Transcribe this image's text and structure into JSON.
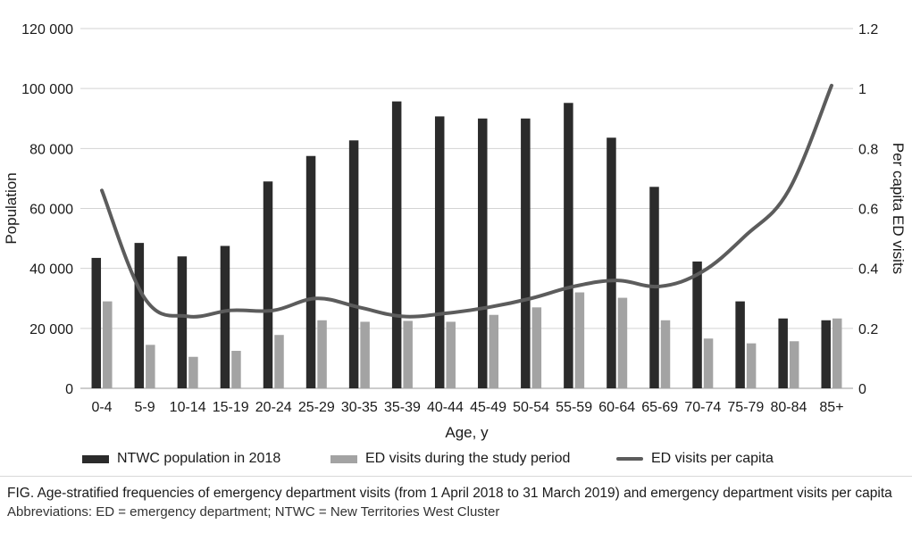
{
  "chart_data": {
    "type": "bar",
    "title": "",
    "xlabel": "Age, y",
    "ylabel": "Population",
    "y2label": "Per capita ED visits",
    "categories": [
      "0-4",
      "5-9",
      "10-14",
      "15-19",
      "20-24",
      "25-29",
      "30-35",
      "35-39",
      "40-44",
      "45-49",
      "50-54",
      "55-59",
      "60-64",
      "65-69",
      "70-74",
      "75-79",
      "80-84",
      "85+"
    ],
    "series": [
      {
        "name": "NTWC population in 2018",
        "kind": "bar",
        "axis": "left",
        "color": "#2b2b2b",
        "values": [
          43500,
          48500,
          44000,
          47500,
          69000,
          77500,
          82700,
          95700,
          90700,
          90000,
          90000,
          95200,
          83600,
          67200,
          42300,
          29000,
          23300,
          22700
        ]
      },
      {
        "name": "ED visits during the study period",
        "kind": "bar",
        "axis": "left",
        "color": "#a3a3a3",
        "values": [
          29000,
          14500,
          10500,
          12500,
          17800,
          22700,
          22200,
          22500,
          22200,
          24500,
          27000,
          32000,
          30200,
          22700,
          16600,
          15000,
          15700,
          23300
        ]
      },
      {
        "name": "ED visits per capita",
        "kind": "line",
        "axis": "right",
        "color": "#5c5c5c",
        "values": [
          0.66,
          0.3,
          0.24,
          0.26,
          0.26,
          0.3,
          0.27,
          0.24,
          0.25,
          0.27,
          0.3,
          0.34,
          0.36,
          0.34,
          0.39,
          0.51,
          0.66,
          1.01
        ]
      }
    ],
    "ylim": [
      0,
      120000
    ],
    "y2lim": [
      0,
      1.2
    ],
    "yticks": [
      "0",
      "20 000",
      "40 000",
      "60 000",
      "80 000",
      "100 000",
      "120 000"
    ],
    "y2ticks": [
      "0",
      "0.2",
      "0.4",
      "0.6",
      "0.8",
      "1",
      "1.2"
    ],
    "grid": true,
    "legend_position": "bottom"
  },
  "caption": {
    "title": "FIG. Age-stratified frequencies of emergency department visits (from 1 April 2018 to 31 March 2019) and emergency department visits per capita",
    "abbreviations": "Abbreviations: ED = emergency department; NTWC = New Territories West Cluster"
  }
}
